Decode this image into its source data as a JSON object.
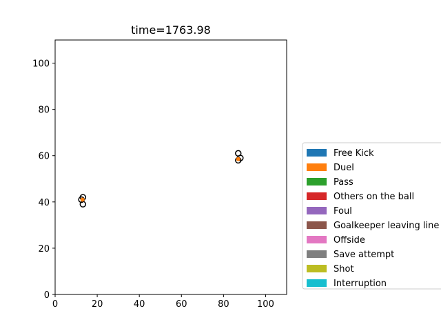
{
  "chart_data": {
    "type": "scatter",
    "title": "time=1763.98",
    "xlabel": "",
    "ylabel": "",
    "xlim": [
      0,
      110
    ],
    "ylim": [
      0,
      110
    ],
    "xticks": [
      0,
      20,
      40,
      60,
      80,
      100
    ],
    "yticks": [
      0,
      20,
      40,
      60,
      80,
      100
    ],
    "grid": false,
    "legend_position": "outside-right",
    "legend": [
      {
        "label": "Free Kick",
        "color": "#1f77b4"
      },
      {
        "label": "Duel",
        "color": "#ff7f0e"
      },
      {
        "label": "Pass",
        "color": "#2ca02c"
      },
      {
        "label": "Others on the ball",
        "color": "#d62728"
      },
      {
        "label": "Foul",
        "color": "#9467bd"
      },
      {
        "label": "Goalkeeper leaving line",
        "color": "#8c564b"
      },
      {
        "label": "Offside",
        "color": "#e377c2"
      },
      {
        "label": "Save attempt",
        "color": "#7f7f7f"
      },
      {
        "label": "Shot",
        "color": "#bcbd22"
      },
      {
        "label": "Interruption",
        "color": "#17becf"
      }
    ],
    "series": [
      {
        "marker": "open-circle",
        "edgecolor": "#000000",
        "facecolor": "none",
        "points": [
          [
            12.5,
            41
          ],
          [
            13.2,
            42
          ],
          [
            13.2,
            39
          ],
          [
            87,
            61
          ],
          [
            88,
            59
          ],
          [
            87,
            58
          ]
        ]
      },
      {
        "marker": "filled-circle",
        "color": "#ff7f0e",
        "points": [
          [
            13.0,
            41
          ],
          [
            87.0,
            58.5
          ]
        ]
      }
    ]
  }
}
